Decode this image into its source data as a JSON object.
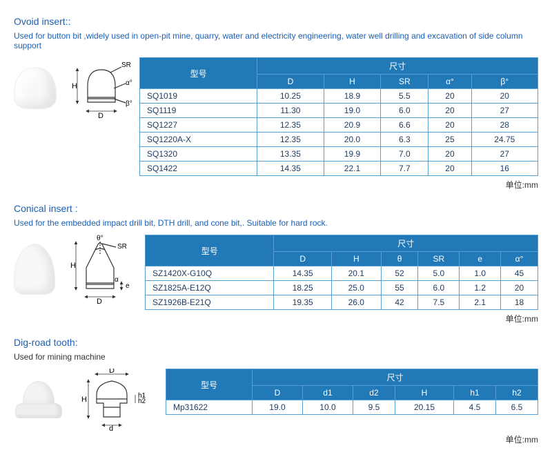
{
  "sections": [
    {
      "title": "Ovoid insert::",
      "desc": "Used for button bit ,widely used in open-pit mine, quarry, water and electricity engineering, water well drilling and excavation of side column support",
      "table": {
        "model_header": "型号",
        "dim_header": "尺寸",
        "columns": [
          "D",
          "H",
          "SR",
          "α°",
          "β°"
        ],
        "rows": [
          [
            "SQ1019",
            "10.25",
            "18.9",
            "5.5",
            "20",
            "20"
          ],
          [
            "SQ1119",
            "11.30",
            "19.0",
            "6.0",
            "20",
            "27"
          ],
          [
            "SQ1227",
            "12.35",
            "20.9",
            "6.6",
            "20",
            "28"
          ],
          [
            "SQ1220A-X",
            "12.35",
            "20.0",
            "6.3",
            "25",
            "24.75"
          ],
          [
            "SQ1320",
            "13.35",
            "19.9",
            "7.0",
            "20",
            "27"
          ],
          [
            "SQ1422",
            "14.35",
            "22.1",
            "7.7",
            "20",
            "16"
          ]
        ]
      },
      "unit": "单位:mm",
      "diagram_labels": {
        "h": "H",
        "d": "D",
        "sr": "SR",
        "a": "α°",
        "b": "β°"
      }
    },
    {
      "title": "Conical insert :",
      "desc": "Used for  the embedded  impact drill bit, DTH drill, and cone bit,. Suitable for hard rock.",
      "table": {
        "model_header": "型号",
        "dim_header": "尺寸",
        "columns": [
          "D",
          "H",
          "θ",
          "SR",
          "e",
          "α°"
        ],
        "rows": [
          [
            "SZ1420X-G10Q",
            "14.35",
            "20.1",
            "52",
            "5.0",
            "1.0",
            "45"
          ],
          [
            "SZ1825A-E12Q",
            "18.25",
            "25.0",
            "55",
            "6.0",
            "1.2",
            "20"
          ],
          [
            "SZ1926B-E21Q",
            "19.35",
            "26.0",
            "42",
            "7.5",
            "2.1",
            "18"
          ]
        ]
      },
      "unit": "单位:mm",
      "diagram_labels": {
        "h": "H",
        "d": "D",
        "sr": "SR",
        "theta": "θ°",
        "a": "α",
        "e": "e"
      }
    },
    {
      "title": "Dig-road tooth:",
      "desc": "Used for mining machine",
      "desc_black": true,
      "table": {
        "model_header": "型号",
        "dim_header": "尺寸",
        "columns": [
          "D",
          "d1",
          "d2",
          "H",
          "h1",
          "h2"
        ],
        "rows": [
          [
            "Mp31622",
            "19.0",
            "10.0",
            "9.5",
            "20.15",
            "4.5",
            "6.5"
          ]
        ]
      },
      "unit": "单位:mm",
      "diagram_labels": {
        "h": "H",
        "d_top": "D",
        "d_bot": "d",
        "h1": "h1",
        "h2": "h2"
      }
    }
  ]
}
